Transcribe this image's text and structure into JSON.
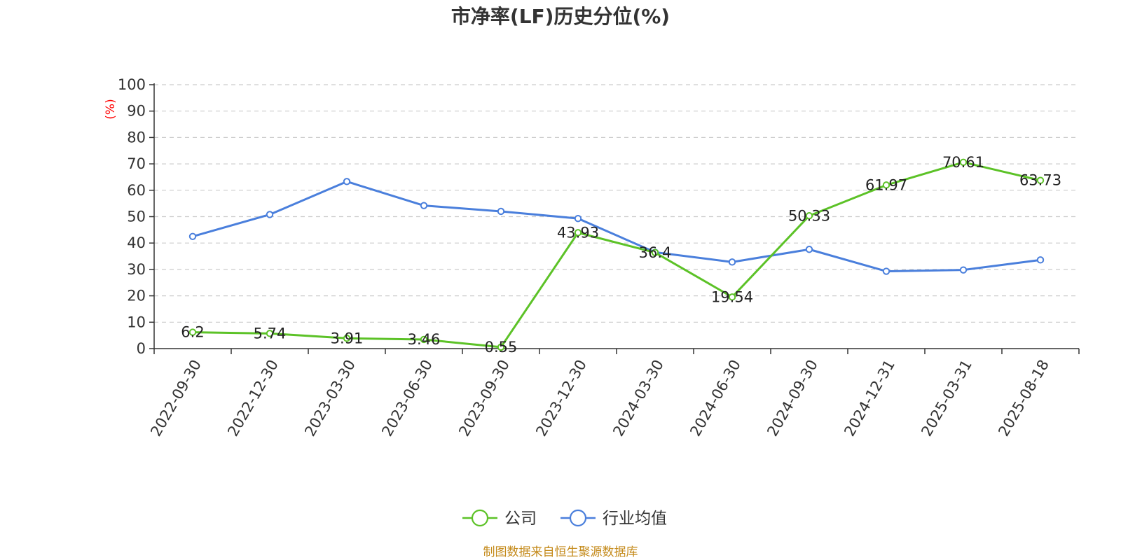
{
  "chart_data": {
    "type": "line",
    "title": "市净率(LF)历史分位(%)",
    "y_unit_label": "(%)",
    "ylim": [
      0,
      100
    ],
    "y_ticks": [
      0,
      10,
      20,
      30,
      40,
      50,
      60,
      70,
      80,
      90,
      100
    ],
    "categories": [
      "2022-09-30",
      "2022-12-30",
      "2023-03-30",
      "2023-06-30",
      "2023-09-30",
      "2023-12-30",
      "2024-03-30",
      "2024-06-30",
      "2024-09-30",
      "2024-12-31",
      "2025-03-31",
      "2025-08-18"
    ],
    "grid": true,
    "legend_position": "bottom",
    "series": [
      {
        "name": "公司",
        "color": "#5cc227",
        "values": [
          6.2,
          5.74,
          3.91,
          3.46,
          0.55,
          43.93,
          36.4,
          19.54,
          50.33,
          61.97,
          70.61,
          63.73
        ],
        "labels": [
          "6.2",
          "5.74",
          "3.91",
          "3.46",
          "0.55",
          "43.93",
          "36.4",
          "19.54",
          "50.33",
          "61.97",
          "70.61",
          "63.73"
        ]
      },
      {
        "name": "行业均值",
        "color": "#4a7fdc",
        "values": [
          42.5,
          50.8,
          63.3,
          54.2,
          52.0,
          49.3,
          36.5,
          32.8,
          37.6,
          29.3,
          29.8,
          33.6
        ]
      }
    ],
    "source": "制图数据来自恒生聚源数据库"
  },
  "colors": {
    "unit_label": "#ff0000",
    "source": "#c48a1a",
    "axis": "#333333",
    "grid": "#cccccc"
  }
}
